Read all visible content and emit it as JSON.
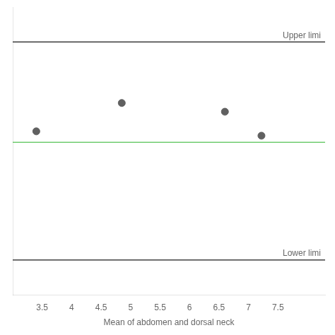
{
  "chart_data": {
    "type": "scatter",
    "xlabel": "Mean of abdomen and dorsal neck",
    "x": [
      3.4,
      4.85,
      6.6,
      7.22
    ],
    "values": [
      0.45,
      1.1,
      0.9,
      0.35
    ],
    "color": "#606060",
    "hlines": [
      {
        "value": 2.5,
        "color": "#1a1a1a",
        "label": "Upper limi"
      },
      {
        "value": 0.2,
        "color": "#2db52d"
      },
      {
        "value": -2.5,
        "color": "#1a1a1a",
        "label": "Lower limi"
      }
    ],
    "xlim": [
      3.0,
      8.3
    ],
    "xticks": [
      3.5,
      4,
      4.5,
      5,
      5.5,
      6,
      6.5,
      7,
      7.5
    ],
    "ylim": [
      -3.3,
      3.3
    ],
    "tick_labels": "x",
    "grid": false
  }
}
